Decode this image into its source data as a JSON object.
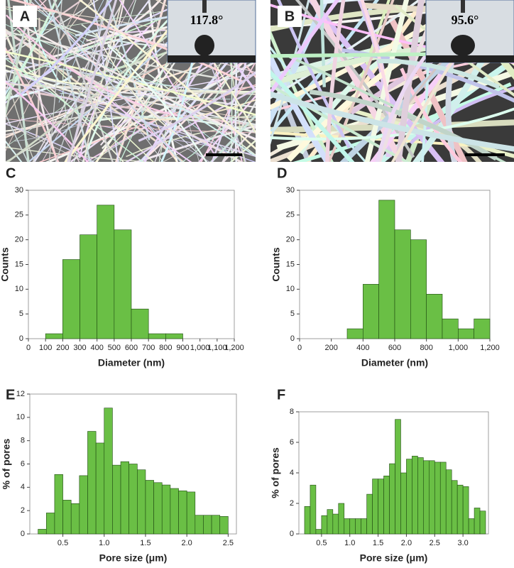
{
  "panels": [
    {
      "label": "A",
      "contact_angle": "117.8°"
    },
    {
      "label": "B",
      "contact_angle": "95.6°"
    }
  ],
  "chart_data": [
    {
      "type": "histogram",
      "panel": "C",
      "xlabel": "Diameter (nm)",
      "ylabel": "Counts",
      "color": "#6abf45",
      "bins": [
        100,
        200,
        300,
        400,
        500,
        600,
        700,
        800,
        900
      ],
      "counts": [
        1,
        16,
        21,
        27,
        22,
        6,
        1,
        1
      ],
      "xlim": [
        0,
        1200
      ],
      "xticks": [
        0,
        100,
        200,
        300,
        400,
        500,
        600,
        700,
        800,
        900,
        {
          "value": 1000,
          "label": "1,000"
        },
        {
          "value": 1100,
          "label": "1,100"
        },
        {
          "value": 1200,
          "label": "1,200"
        }
      ],
      "ylim": [
        0,
        30
      ],
      "yticks": [
        0,
        5,
        10,
        15,
        20,
        25,
        30
      ]
    },
    {
      "type": "histogram",
      "panel": "D",
      "xlabel": "Diameter (nm)",
      "ylabel": "Counts",
      "color": "#6abf45",
      "bins": [
        300,
        400,
        500,
        600,
        700,
        800,
        900,
        1000,
        1100,
        1200
      ],
      "counts": [
        2,
        11,
        28,
        22,
        20,
        9,
        4,
        2,
        4
      ],
      "xlim": [
        0,
        1200
      ],
      "xticks": [
        0,
        200,
        400,
        600,
        800,
        {
          "value": 1000,
          "label": "1,000"
        },
        {
          "value": 1200,
          "label": "1,200"
        }
      ],
      "ylim": [
        0,
        30
      ],
      "yticks": [
        0,
        5,
        10,
        15,
        20,
        25,
        30
      ]
    },
    {
      "type": "histogram",
      "panel": "E",
      "xlabel": "Pore size  (μm)",
      "ylabel": "% of pores",
      "color": "#6abf45",
      "bins": [
        0.2,
        0.3,
        0.4,
        0.5,
        0.6,
        0.7,
        0.8,
        0.9,
        1.0,
        1.1,
        1.2,
        1.3,
        1.4,
        1.5,
        1.6,
        1.7,
        1.8,
        1.9,
        2.0,
        2.1,
        2.2,
        2.3,
        2.4,
        2.5
      ],
      "counts": [
        0.4,
        1.8,
        5.1,
        2.9,
        2.6,
        5.0,
        8.8,
        7.8,
        10.8,
        5.9,
        6.2,
        6.0,
        5.5,
        4.6,
        4.4,
        4.2,
        3.9,
        3.7,
        3.6,
        1.6,
        1.6,
        1.6,
        1.5
      ],
      "xlim": [
        0.1,
        2.6
      ],
      "xticks": [
        0.5,
        {
          "value": 1,
          "label": "1.0"
        },
        1.5,
        {
          "value": 2,
          "label": "2.0"
        },
        2.5
      ],
      "ylim": [
        0,
        12
      ],
      "yticks": [
        0,
        2,
        4,
        6,
        8,
        10,
        12
      ]
    },
    {
      "type": "histogram",
      "panel": "F",
      "xlabel": "Pore size  (μm)",
      "ylabel": "% of pores",
      "color": "#6abf45",
      "bins": [
        0.2,
        0.3,
        0.4,
        0.5,
        0.6,
        0.7,
        0.8,
        0.9,
        1.0,
        1.1,
        1.2,
        1.3,
        1.4,
        1.5,
        1.6,
        1.7,
        1.8,
        1.9,
        2.0,
        2.1,
        2.2,
        2.3,
        2.4,
        2.5,
        2.6,
        2.7,
        2.8,
        2.9,
        3.0,
        3.1,
        3.2,
        3.3,
        3.4
      ],
      "counts": [
        1.8,
        3.2,
        0.3,
        1.2,
        1.6,
        1.3,
        2.0,
        1.0,
        1.0,
        1.0,
        1.0,
        2.6,
        3.6,
        3.6,
        3.8,
        4.6,
        7.5,
        4.0,
        4.9,
        5.1,
        5.0,
        4.8,
        4.8,
        4.7,
        4.7,
        4.2,
        3.5,
        3.2,
        3.1,
        1.0,
        1.7,
        1.5
      ],
      "xlim": [
        0.1,
        3.45
      ],
      "xticks": [
        0.5,
        {
          "value": 1,
          "label": "1.0"
        },
        1.5,
        {
          "value": 2,
          "label": "2.0"
        },
        2.5,
        {
          "value": 3,
          "label": "3.0"
        }
      ],
      "ylim": [
        0,
        8
      ],
      "yticks": [
        0,
        2,
        4,
        6,
        8
      ]
    }
  ]
}
